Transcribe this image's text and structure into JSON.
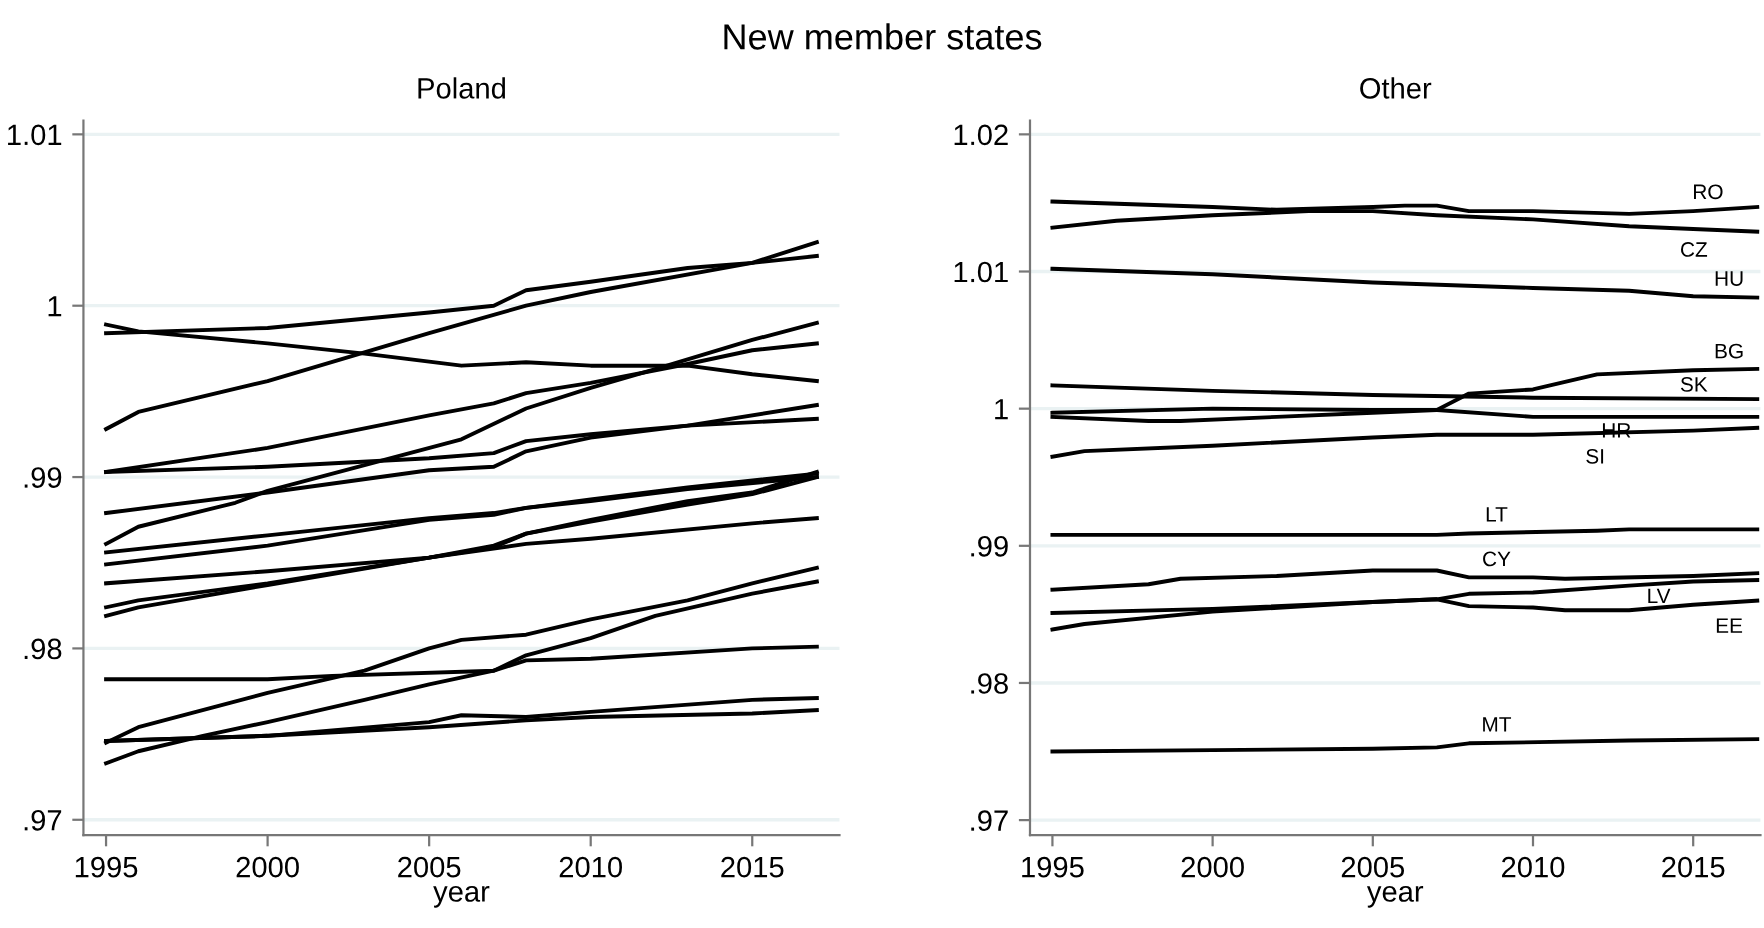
{
  "chart_data": [
    {
      "type": "line",
      "title": "Poland",
      "xlabel": "year",
      "annotations": [
        "New member states"
      ],
      "xlim": [
        1994.3,
        2017.7
      ],
      "ylim": [
        0.9691,
        1.0108
      ],
      "xticks": [
        1995,
        2000,
        2005,
        2010,
        2015
      ],
      "yticks": [
        {
          "value": 0.97,
          "label": ".97"
        },
        {
          "value": 0.98,
          "label": ".98"
        },
        {
          "value": 0.99,
          "label": ".99"
        },
        1,
        1.01
      ],
      "grid": "y",
      "marker": "none",
      "line_style": "solid",
      "series": [
        {
          "color": "#000000",
          "x": [
            1995,
            2000,
            2005,
            2007,
            2008,
            2010,
            2013,
            2015,
            2017
          ],
          "values": [
            0.9984,
            0.9987,
            0.9996,
            1.0,
            1.0009,
            1.0014,
            1.0022,
            1.0025,
            1.0029
          ]
        },
        {
          "color": "#000000",
          "x": [
            1995,
            1996,
            2000,
            2003,
            2006,
            2008,
            2010,
            2013,
            2015,
            2017
          ],
          "values": [
            0.9989,
            0.9985,
            0.9978,
            0.9972,
            0.9965,
            0.9967,
            0.9965,
            0.9965,
            0.996,
            0.9956
          ]
        },
        {
          "color": "#000000",
          "x": [
            1995,
            1996,
            2000,
            2005,
            2008,
            2010,
            2015,
            2017
          ],
          "values": [
            0.9928,
            0.9938,
            0.9956,
            0.9984,
            1.0,
            1.0008,
            1.0025,
            1.0037
          ]
        },
        {
          "color": "#000000",
          "x": [
            1995,
            2000,
            2005,
            2007,
            2008,
            2010,
            2013,
            2015,
            2017
          ],
          "values": [
            0.9903,
            0.9917,
            0.9936,
            0.9943,
            0.9949,
            0.9955,
            0.9966,
            0.9974,
            0.9978
          ]
        },
        {
          "color": "#000000",
          "x": [
            1995,
            2000,
            2005,
            2007,
            2008,
            2010,
            2013,
            2017
          ],
          "values": [
            0.9903,
            0.9906,
            0.9911,
            0.9914,
            0.9921,
            0.9925,
            0.993,
            0.9934
          ]
        },
        {
          "color": "#000000",
          "x": [
            1995,
            2000,
            2005,
            2007,
            2008,
            2010,
            2013,
            2017
          ],
          "values": [
            0.9879,
            0.9891,
            0.9904,
            0.9906,
            0.9915,
            0.9923,
            0.993,
            0.9942
          ]
        },
        {
          "color": "#000000",
          "x": [
            1995,
            1996,
            1999,
            2000,
            2003,
            2006,
            2008,
            2010,
            2012,
            2015,
            2017
          ],
          "values": [
            0.9861,
            0.9871,
            0.9885,
            0.9892,
            0.9907,
            0.9922,
            0.994,
            0.9952,
            0.9963,
            0.998,
            0.999
          ]
        },
        {
          "color": "#000000",
          "x": [
            1995,
            2000,
            2005,
            2007,
            2008,
            2010,
            2013,
            2017
          ],
          "values": [
            0.9856,
            0.9866,
            0.9876,
            0.9879,
            0.9882,
            0.9887,
            0.9894,
            0.9902
          ]
        },
        {
          "color": "#000000",
          "x": [
            1995,
            2000,
            2005,
            2007,
            2008,
            2010,
            2013,
            2017
          ],
          "values": [
            0.9849,
            0.986,
            0.9875,
            0.9878,
            0.9882,
            0.9886,
            0.9893,
            0.99
          ]
        },
        {
          "color": "#000000",
          "x": [
            1995,
            2000,
            2005,
            2008,
            2010,
            2015,
            2017
          ],
          "values": [
            0.9838,
            0.9845,
            0.9853,
            0.9861,
            0.9864,
            0.9873,
            0.9876
          ]
        },
        {
          "color": "#000000",
          "x": [
            1995,
            1996,
            2000,
            2005,
            2007,
            2008,
            2010,
            2013,
            2015,
            2017
          ],
          "values": [
            0.9824,
            0.9828,
            0.9838,
            0.9853,
            0.986,
            0.9867,
            0.9875,
            0.9886,
            0.9891,
            0.9903
          ]
        },
        {
          "color": "#000000",
          "x": [
            1995,
            1996,
            2000,
            2005,
            2007,
            2008,
            2010,
            2013,
            2015,
            2017
          ],
          "values": [
            0.9819,
            0.9824,
            0.9837,
            0.9853,
            0.9859,
            0.9867,
            0.9874,
            0.9884,
            0.989,
            0.99
          ]
        },
        {
          "color": "#000000",
          "x": [
            1995,
            1996,
            2000,
            2003,
            2005,
            2006,
            2008,
            2010,
            2013,
            2015,
            2017
          ],
          "values": [
            0.9745,
            0.9754,
            0.9774,
            0.9787,
            0.98,
            0.9805,
            0.9808,
            0.9817,
            0.9828,
            0.9838,
            0.9847
          ]
        },
        {
          "color": "#000000",
          "x": [
            1995,
            1996,
            1998,
            2000,
            2003,
            2005,
            2007,
            2008,
            2010,
            2012,
            2015,
            2017
          ],
          "values": [
            0.9733,
            0.974,
            0.9749,
            0.9757,
            0.977,
            0.9779,
            0.9787,
            0.9796,
            0.9806,
            0.9819,
            0.9832,
            0.9839
          ]
        },
        {
          "color": "#000000",
          "x": [
            1995,
            2000,
            2002,
            2007,
            2008,
            2010,
            2015,
            2017
          ],
          "values": [
            0.9782,
            0.9782,
            0.9784,
            0.9787,
            0.9793,
            0.9794,
            0.98,
            0.9801
          ]
        },
        {
          "color": "#000000",
          "x": [
            1995,
            2000,
            2005,
            2006,
            2008,
            2010,
            2015,
            2017
          ],
          "values": [
            0.9746,
            0.9749,
            0.9757,
            0.9761,
            0.976,
            0.9763,
            0.977,
            0.9771
          ]
        },
        {
          "color": "#000000",
          "x": [
            1995,
            2000,
            2005,
            2008,
            2010,
            2015,
            2017
          ],
          "values": [
            0.9746,
            0.9749,
            0.9754,
            0.9758,
            0.976,
            0.9762,
            0.9764
          ]
        }
      ]
    },
    {
      "type": "line",
      "title": "Other",
      "xlabel": "year",
      "xlim": [
        1994.3,
        2017.1
      ],
      "ylim": [
        0.9689,
        1.021
      ],
      "xticks": [
        1995,
        2000,
        2005,
        2010,
        2015
      ],
      "yticks": [
        {
          "value": 0.97,
          "label": ".97"
        },
        {
          "value": 0.98,
          "label": ".98"
        },
        {
          "value": 0.99,
          "label": ".99"
        },
        1,
        1.01,
        1.02
      ],
      "grid": "y",
      "marker": "none",
      "line_style": "solid",
      "series": [
        {
          "name": "RO",
          "color": "#000000",
          "x": [
            1995,
            2000,
            2002,
            2005,
            2006,
            2007,
            2008,
            2010,
            2013,
            2015,
            2017
          ],
          "values": [
            1.0151,
            1.0147,
            1.0145,
            1.0147,
            1.0148,
            1.0148,
            1.0144,
            1.0144,
            1.0142,
            1.0144,
            1.0147
          ]
        },
        {
          "name": "CZ",
          "color": "#000000",
          "x": [
            1995,
            1997,
            2000,
            2003,
            2005,
            2007,
            2010,
            2013,
            2015,
            2017
          ],
          "values": [
            1.0132,
            1.0137,
            1.0141,
            1.0144,
            1.0144,
            1.0141,
            1.0138,
            1.0133,
            1.0131,
            1.0129
          ]
        },
        {
          "name": "HU",
          "color": "#000000",
          "x": [
            1995,
            2000,
            2005,
            2010,
            2013,
            2015,
            2017
          ],
          "values": [
            1.0102,
            1.0098,
            1.0092,
            1.0088,
            1.0086,
            1.0082,
            1.0081
          ]
        },
        {
          "name": "BG",
          "color": "#000000",
          "x": [
            1995,
            1998,
            1999,
            2002,
            2005,
            2007,
            2008,
            2010,
            2012,
            2015,
            2017
          ],
          "values": [
            0.9994,
            0.9991,
            0.9991,
            0.9994,
            0.9997,
            0.9999,
            1.0011,
            1.0014,
            1.0025,
            1.0028,
            1.0029
          ]
        },
        {
          "name": "SK",
          "color": "#000000",
          "x": [
            1995,
            2000,
            2005,
            2010,
            2017
          ],
          "values": [
            1.0017,
            1.0013,
            1.001,
            1.0008,
            1.0007
          ]
        },
        {
          "name": "HR",
          "color": "#000000",
          "x": [
            1995,
            2000,
            2005,
            2007,
            2010,
            2015,
            2017
          ],
          "values": [
            0.9997,
            1.0,
            0.9999,
            0.9999,
            0.9994,
            0.9994,
            0.9994
          ]
        },
        {
          "name": "SI",
          "color": "#000000",
          "x": [
            1995,
            1996,
            2000,
            2005,
            2007,
            2010,
            2015,
            2017
          ],
          "values": [
            0.9965,
            0.9969,
            0.9973,
            0.9979,
            0.9981,
            0.9981,
            0.9984,
            0.9986
          ]
        },
        {
          "name": "LT",
          "color": "#000000",
          "x": [
            1995,
            2007,
            2008,
            2012,
            2013,
            2017
          ],
          "values": [
            0.9908,
            0.9908,
            0.9909,
            0.9911,
            0.9912,
            0.9912
          ]
        },
        {
          "name": "CY",
          "color": "#000000",
          "x": [
            1995,
            1998,
            1999,
            2002,
            2005,
            2007,
            2008,
            2010,
            2011,
            2015,
            2017
          ],
          "values": [
            0.9868,
            0.9872,
            0.9876,
            0.9878,
            0.9882,
            0.9882,
            0.9877,
            0.9877,
            0.9876,
            0.9878,
            0.988
          ]
        },
        {
          "name": "LV",
          "color": "#000000",
          "x": [
            1995,
            2000,
            2005,
            2007,
            2008,
            2010,
            2013,
            2015,
            2017
          ],
          "values": [
            0.9851,
            0.9854,
            0.9859,
            0.9861,
            0.9865,
            0.9866,
            0.9871,
            0.9874,
            0.9875
          ]
        },
        {
          "name": "EE",
          "color": "#000000",
          "x": [
            1995,
            1996,
            2000,
            2005,
            2007,
            2008,
            2010,
            2011,
            2013,
            2015,
            2017
          ],
          "values": [
            0.9839,
            0.9843,
            0.9852,
            0.9859,
            0.9861,
            0.9856,
            0.9855,
            0.9853,
            0.9853,
            0.9857,
            0.986
          ]
        },
        {
          "name": "MT",
          "color": "#000000",
          "x": [
            1995,
            2000,
            2005,
            2007,
            2008,
            2013,
            2017
          ],
          "values": [
            0.975,
            0.9751,
            0.9752,
            0.9753,
            0.9756,
            0.9758,
            0.9759
          ]
        }
      ]
    }
  ]
}
